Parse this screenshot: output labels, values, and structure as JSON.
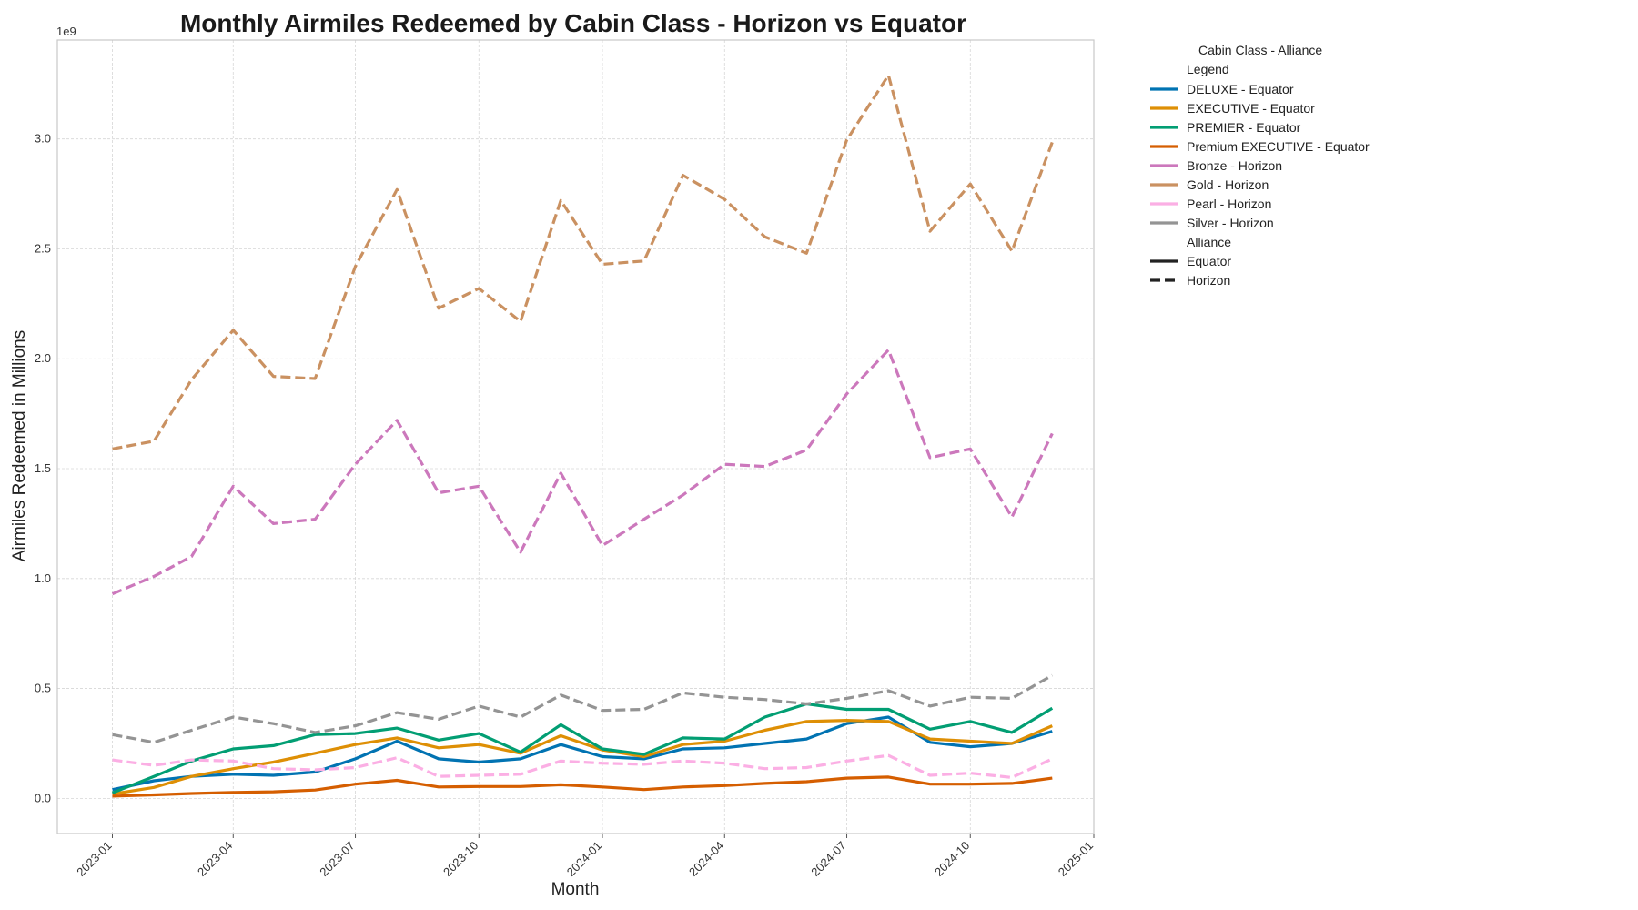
{
  "chart_data": {
    "type": "line",
    "title": "Monthly Airmiles Redeemed by Cabin Class - Horizon vs Equator",
    "xlabel": "Month",
    "ylabel": "Airmiles Redeemed in Millions",
    "y_offset_text": "1e9",
    "y_multiplier": 1000000000,
    "ylim": [
      -0.16,
      3.45
    ],
    "y_ticks": [
      "0.0",
      "0.5",
      "1.0",
      "1.5",
      "2.0",
      "2.5",
      "3.0"
    ],
    "xlim": [
      "2022-11-21",
      "2025-01-01"
    ],
    "x_ticks": [
      "2023-01",
      "2023-04",
      "2023-07",
      "2023-10",
      "2024-01",
      "2024-04",
      "2024-07",
      "2024-10",
      "2025-01"
    ],
    "grid": true,
    "x": [
      "2023-01",
      "2023-02",
      "2023-03",
      "2023-04",
      "2023-05",
      "2023-06",
      "2023-07",
      "2023-08",
      "2023-09",
      "2023-10",
      "2023-11",
      "2023-12",
      "2024-01",
      "2024-02",
      "2024-03",
      "2024-04",
      "2024-05",
      "2024-06",
      "2024-07",
      "2024-08",
      "2024-09",
      "2024-10",
      "2024-11",
      "2024-12"
    ],
    "legend": {
      "title": "Cabin Class - Alliance",
      "placement": "outside-right",
      "sub_header_1": "Legend",
      "sub_header_2": "Alliance",
      "style_entries": [
        {
          "label": "Equator",
          "dash": "solid"
        },
        {
          "label": "Horizon",
          "dash": "dashed"
        }
      ]
    },
    "series": [
      {
        "name": "DELUXE - Equator",
        "color": "#0173b2",
        "dash": "solid",
        "values": [
          0.04,
          0.08,
          0.1,
          0.11,
          0.105,
          0.12,
          0.18,
          0.26,
          0.18,
          0.165,
          0.18,
          0.245,
          0.19,
          0.18,
          0.225,
          0.23,
          0.25,
          0.27,
          0.34,
          0.37,
          0.255,
          0.235,
          0.25,
          0.305
        ]
      },
      {
        "name": "EXECUTIVE - Equator",
        "color": "#de8f05",
        "dash": "solid",
        "values": [
          0.02,
          0.05,
          0.1,
          0.135,
          0.165,
          0.205,
          0.245,
          0.275,
          0.23,
          0.245,
          0.205,
          0.285,
          0.22,
          0.19,
          0.245,
          0.26,
          0.31,
          0.35,
          0.355,
          0.35,
          0.27,
          0.26,
          0.25,
          0.33
        ]
      },
      {
        "name": "PREMIER - Equator",
        "color": "#029e73",
        "dash": "solid",
        "values": [
          0.025,
          0.1,
          0.17,
          0.225,
          0.24,
          0.29,
          0.295,
          0.32,
          0.265,
          0.295,
          0.21,
          0.335,
          0.225,
          0.2,
          0.275,
          0.27,
          0.37,
          0.43,
          0.405,
          0.405,
          0.315,
          0.35,
          0.3,
          0.41
        ]
      },
      {
        "name": "Premium EXECUTIVE - Equator",
        "color": "#d55e00",
        "dash": "solid",
        "values": [
          0.01,
          0.016,
          0.022,
          0.027,
          0.03,
          0.038,
          0.065,
          0.082,
          0.052,
          0.054,
          0.054,
          0.062,
          0.052,
          0.04,
          0.052,
          0.058,
          0.068,
          0.076,
          0.092,
          0.097,
          0.065,
          0.065,
          0.068,
          0.092
        ]
      },
      {
        "name": "Bronze - Horizon",
        "color": "#cc78bc",
        "dash": "dashed",
        "values": [
          0.93,
          1.01,
          1.1,
          1.42,
          1.25,
          1.27,
          1.52,
          1.72,
          1.39,
          1.42,
          1.12,
          1.48,
          1.15,
          1.27,
          1.38,
          1.52,
          1.51,
          1.585,
          1.84,
          2.04,
          1.55,
          1.59,
          1.28,
          1.66
        ]
      },
      {
        "name": "Gold - Horizon",
        "color": "#ca9161",
        "dash": "dashed",
        "values": [
          1.59,
          1.625,
          1.905,
          2.13,
          1.92,
          1.91,
          2.42,
          2.77,
          2.23,
          2.32,
          2.17,
          2.72,
          2.43,
          2.445,
          2.835,
          2.725,
          2.555,
          2.48,
          2.995,
          3.29,
          2.58,
          2.795,
          2.49,
          2.985
        ]
      },
      {
        "name": "Pearl - Horizon",
        "color": "#fbafe4",
        "dash": "dashed",
        "values": [
          0.175,
          0.15,
          0.175,
          0.17,
          0.135,
          0.13,
          0.14,
          0.185,
          0.1,
          0.105,
          0.11,
          0.17,
          0.16,
          0.155,
          0.17,
          0.16,
          0.135,
          0.14,
          0.17,
          0.195,
          0.105,
          0.115,
          0.095,
          0.18
        ]
      },
      {
        "name": "Silver - Horizon",
        "color": "#949494",
        "dash": "dashed",
        "values": [
          0.29,
          0.255,
          0.31,
          0.37,
          0.34,
          0.3,
          0.33,
          0.39,
          0.36,
          0.42,
          0.37,
          0.47,
          0.4,
          0.405,
          0.48,
          0.46,
          0.45,
          0.43,
          0.455,
          0.49,
          0.42,
          0.46,
          0.455,
          0.56
        ]
      }
    ]
  }
}
